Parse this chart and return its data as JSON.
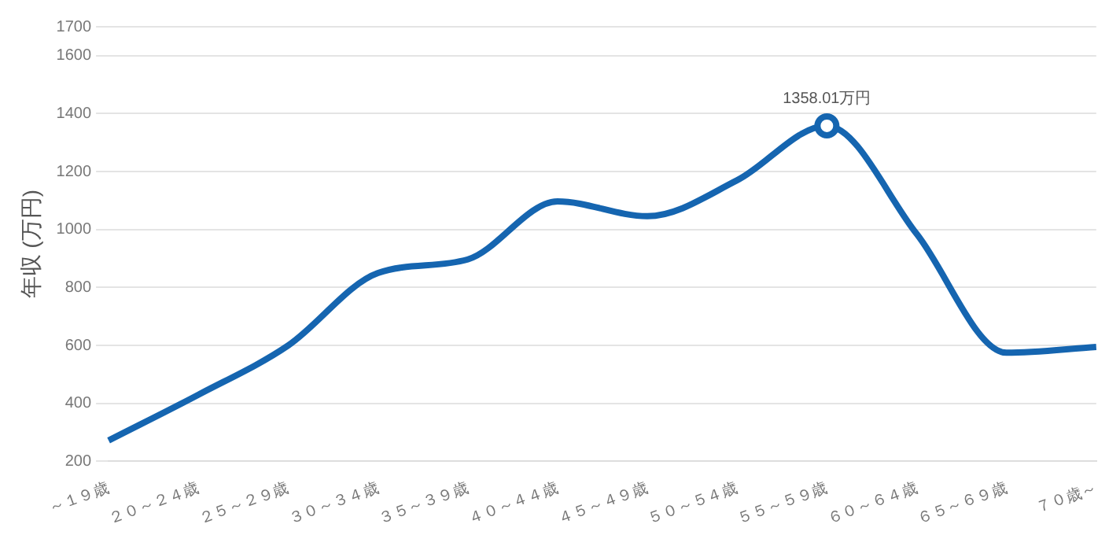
{
  "chart_data": {
    "type": "line",
    "ylabel": "年収 (万円)",
    "categories": [
      "～１９歳",
      "２０～２４歳",
      "２５～２９歳",
      "３０～３４歳",
      "３５～３９歳",
      "４０～４４歳",
      "４５～４９歳",
      "５０～５４歳",
      "５５～５９歳",
      "６０～６４歳",
      "６５～６９歳",
      "７０歳～"
    ],
    "series": [
      {
        "color": "#1565b0",
        "values": [
          272,
          430,
          600,
          850,
          897,
          1097,
          1046,
          1170,
          1358.01,
          985,
          575,
          595
        ],
        "value_labels": [
          null,
          null,
          null,
          null,
          null,
          null,
          null,
          null,
          "1358.01万円",
          null,
          null,
          null
        ]
      }
    ],
    "ylim": [
      200,
      1700
    ],
    "yticks": [
      200,
      400,
      600,
      800,
      1000,
      1200,
      1400,
      1600,
      1700
    ],
    "grid": "y",
    "legend": false
  }
}
